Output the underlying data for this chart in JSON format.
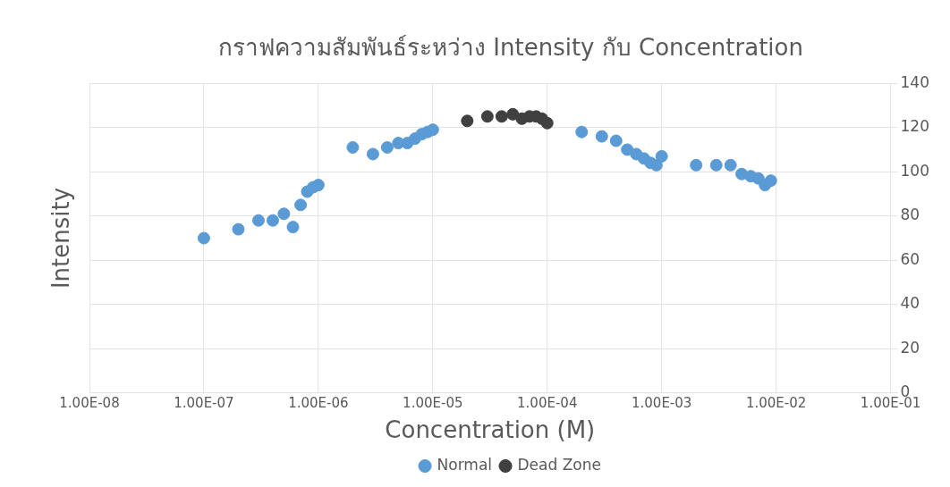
{
  "chart_data": {
    "type": "scatter",
    "title": "กราฟความสัมพันธ์ระหว่าง Intensity กับ Concentration",
    "xlabel": "Concentration (M)",
    "ylabel": "Intensity",
    "series": [
      {
        "name": "Normal",
        "color": "#5b9bd5",
        "x": [
          1e-07,
          2e-07,
          3e-07,
          4e-07,
          5e-07,
          6e-07,
          7e-07,
          8e-07,
          9e-07,
          1e-06,
          2e-06,
          3e-06,
          4e-06,
          5e-06,
          6e-06,
          7e-06,
          8e-06,
          9e-06,
          1e-05,
          null,
          0.0002,
          0.0003,
          0.0004,
          0.0005,
          0.0006,
          0.0007,
          0.0008,
          0.0009,
          0.001,
          0.002,
          0.003,
          0.004,
          0.005,
          0.006,
          0.007,
          0.008,
          0.009
        ],
        "values": [
          70,
          74,
          78,
          78,
          81,
          75,
          85,
          91,
          93,
          94,
          111,
          108,
          111,
          113,
          113,
          115,
          117,
          118,
          119,
          null,
          118,
          116,
          114,
          110,
          108,
          106,
          104,
          103,
          107,
          103,
          103,
          103,
          99,
          98,
          97,
          94,
          96
        ]
      },
      {
        "name": "Dead Zone",
        "color": "#404040",
        "x": [
          2e-05,
          3e-05,
          4e-05,
          5e-05,
          6e-05,
          7e-05,
          8e-05,
          9e-05,
          0.0001
        ],
        "values": [
          123,
          125,
          125,
          126,
          124,
          125,
          125,
          124,
          122
        ]
      }
    ],
    "log": "x",
    "xlim": [
      1e-08,
      0.1
    ],
    "xticks": [
      {
        "value": 1e-08,
        "label": "1.00E-08"
      },
      {
        "value": 1e-07,
        "label": "1.00E-07"
      },
      {
        "value": 1e-06,
        "label": "1.00E-06"
      },
      {
        "value": 1e-05,
        "label": "1.00E-05"
      },
      {
        "value": 0.0001,
        "label": "1.00E-04"
      },
      {
        "value": 0.001,
        "label": "1.00E-03"
      },
      {
        "value": 0.01,
        "label": "1.00E-02"
      },
      {
        "value": 0.1,
        "label": "1.00E-01"
      }
    ],
    "ylim": [
      0,
      140
    ],
    "yticks": [
      0,
      20,
      40,
      60,
      80,
      100,
      120,
      140
    ],
    "grid": true,
    "legend": "bottom",
    "marker": "circle"
  }
}
